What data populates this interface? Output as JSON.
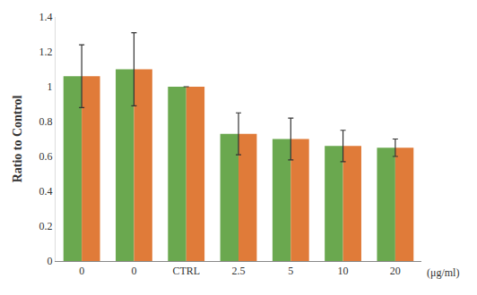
{
  "chart_data": {
    "type": "bar",
    "y_label": "Ratio to Control",
    "x_label": "(μg/ml)",
    "categories": [
      "0",
      "0",
      "CTRL",
      "2.5",
      "5",
      "10",
      "20"
    ],
    "series": [
      {
        "color": "#6aa84f",
        "values": [
          1.06,
          1.1,
          1.0,
          0.73,
          0.7,
          0.66,
          0.65
        ]
      },
      {
        "color": "#e07b39",
        "values": [
          1.06,
          1.1,
          1.0,
          0.73,
          0.7,
          0.66,
          0.65
        ]
      }
    ],
    "errors": [
      0.18,
      0.21,
      0.0,
      0.12,
      0.12,
      0.09,
      0.05
    ],
    "ylim": [
      0,
      1.4
    ],
    "yticks": [
      0,
      0.2,
      0.4,
      0.6,
      0.8,
      1,
      1.2,
      1.4
    ],
    "grid": false
  }
}
